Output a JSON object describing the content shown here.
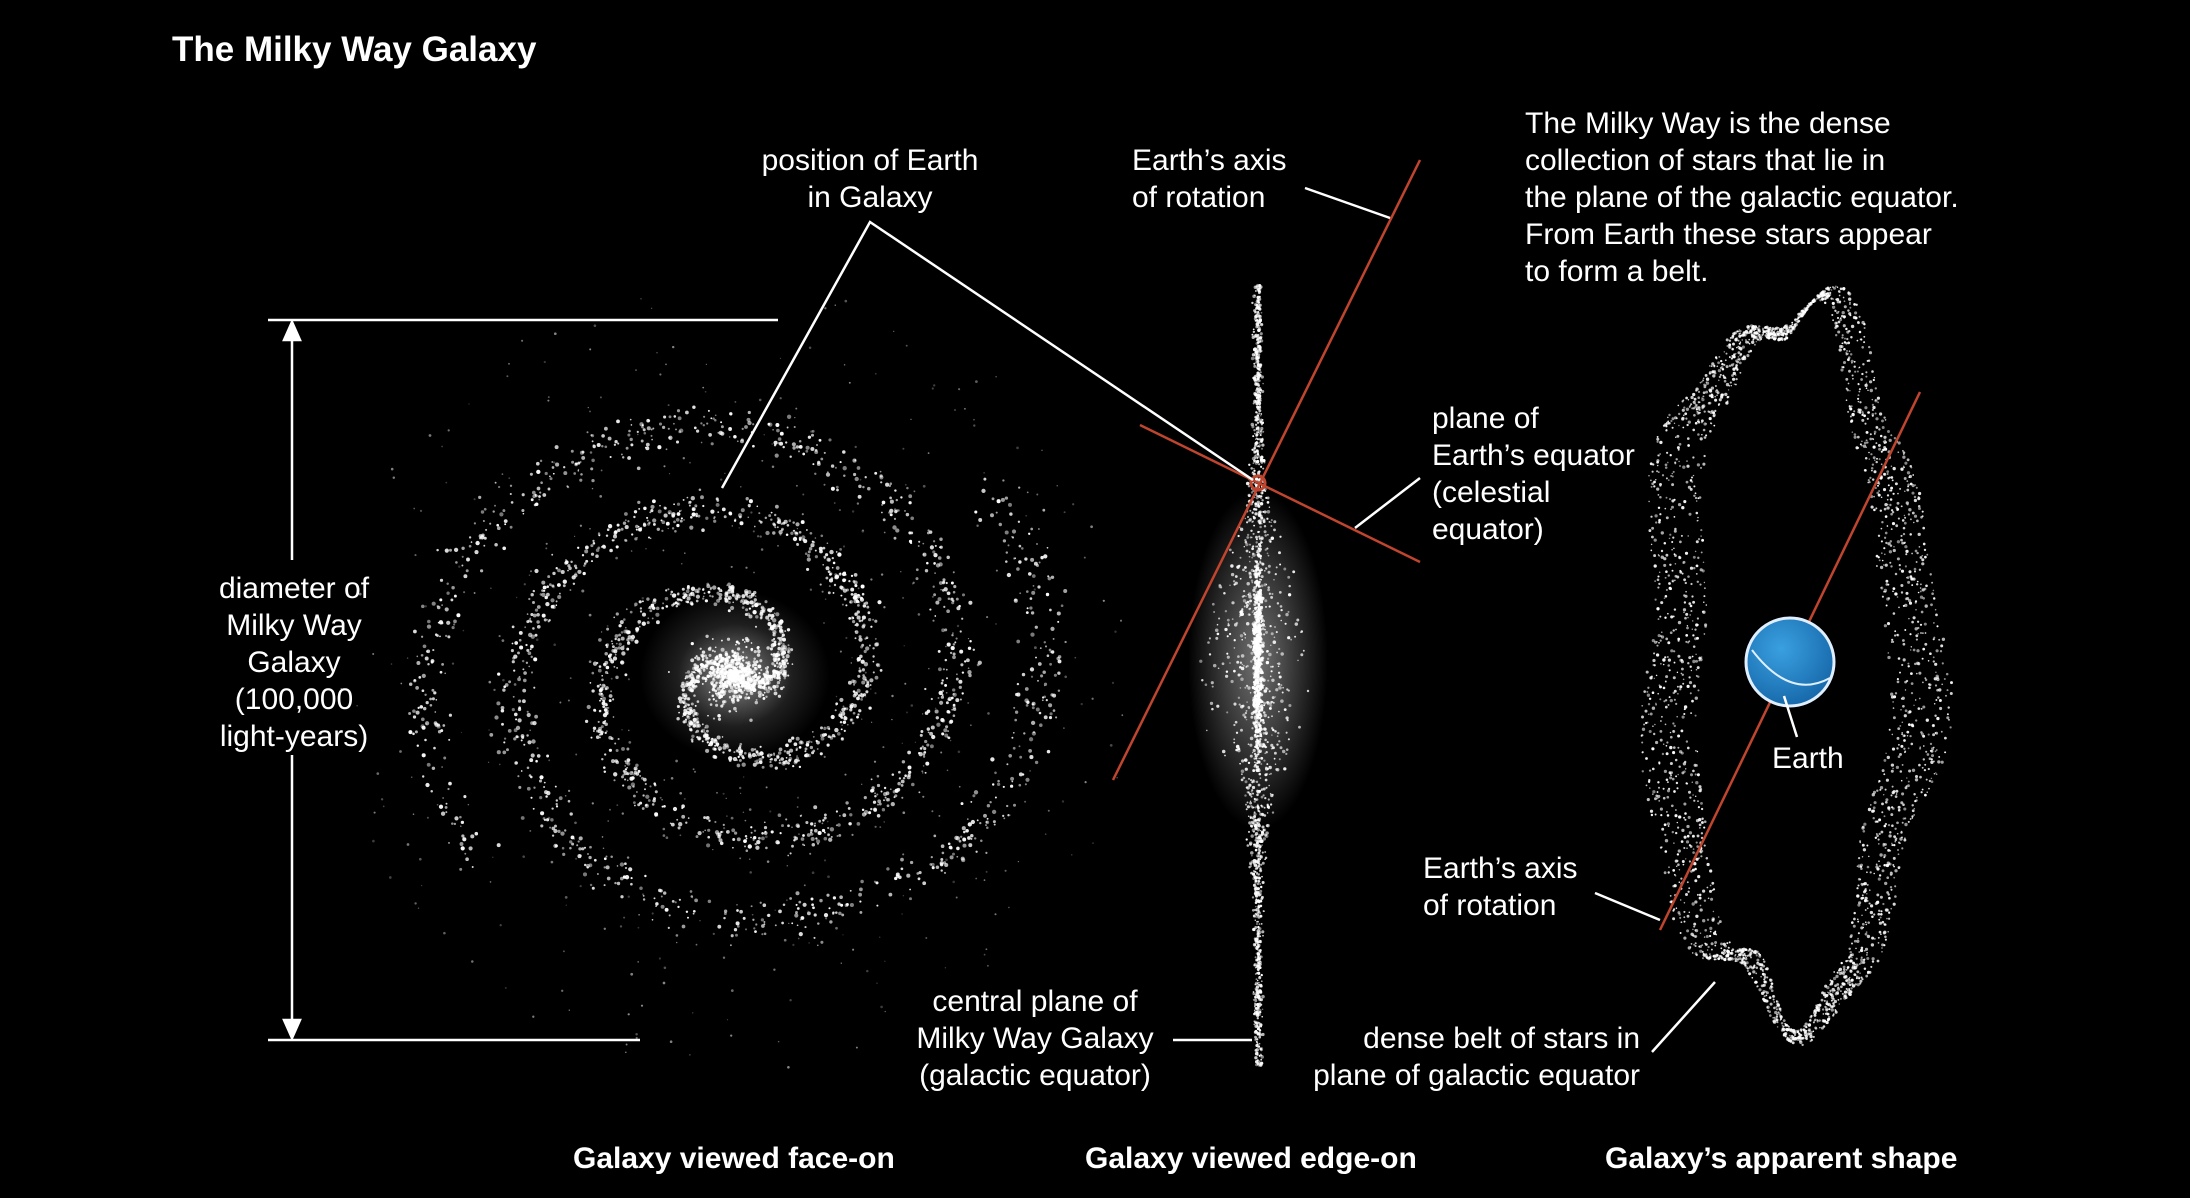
{
  "title": "The Milky Way Galaxy",
  "labels": {
    "position_of_earth": "position of Earth\nin Galaxy",
    "earth_axis_top": "Earth’s axis\nof rotation",
    "description": "The Milky Way is the dense\ncollection of stars that lie in\nthe plane of the galactic equator.\nFrom Earth these stars appear\nto form a belt.",
    "plane_of_equator": "plane of\nEarth’s equator\n(celestial\nequator)",
    "diameter": "diameter of\nMilky Way\nGalaxy\n(100,000\nlight-years)",
    "earth": "Earth",
    "earth_axis_bottom": "Earth’s axis\nof rotation",
    "central_plane": "central plane of\nMilky Way Galaxy\n(galactic equator)",
    "dense_belt": "dense belt of stars in\nplane of galactic equator"
  },
  "captions": {
    "face_on": "Galaxy viewed face-on",
    "edge_on": "Galaxy viewed edge-on",
    "apparent_shape": "Galaxy’s apparent shape"
  },
  "colors": {
    "background": "#000000",
    "stars": "#ffffff",
    "axis_lines": "#c0452f",
    "earth_globe": "#1f7fc4"
  }
}
